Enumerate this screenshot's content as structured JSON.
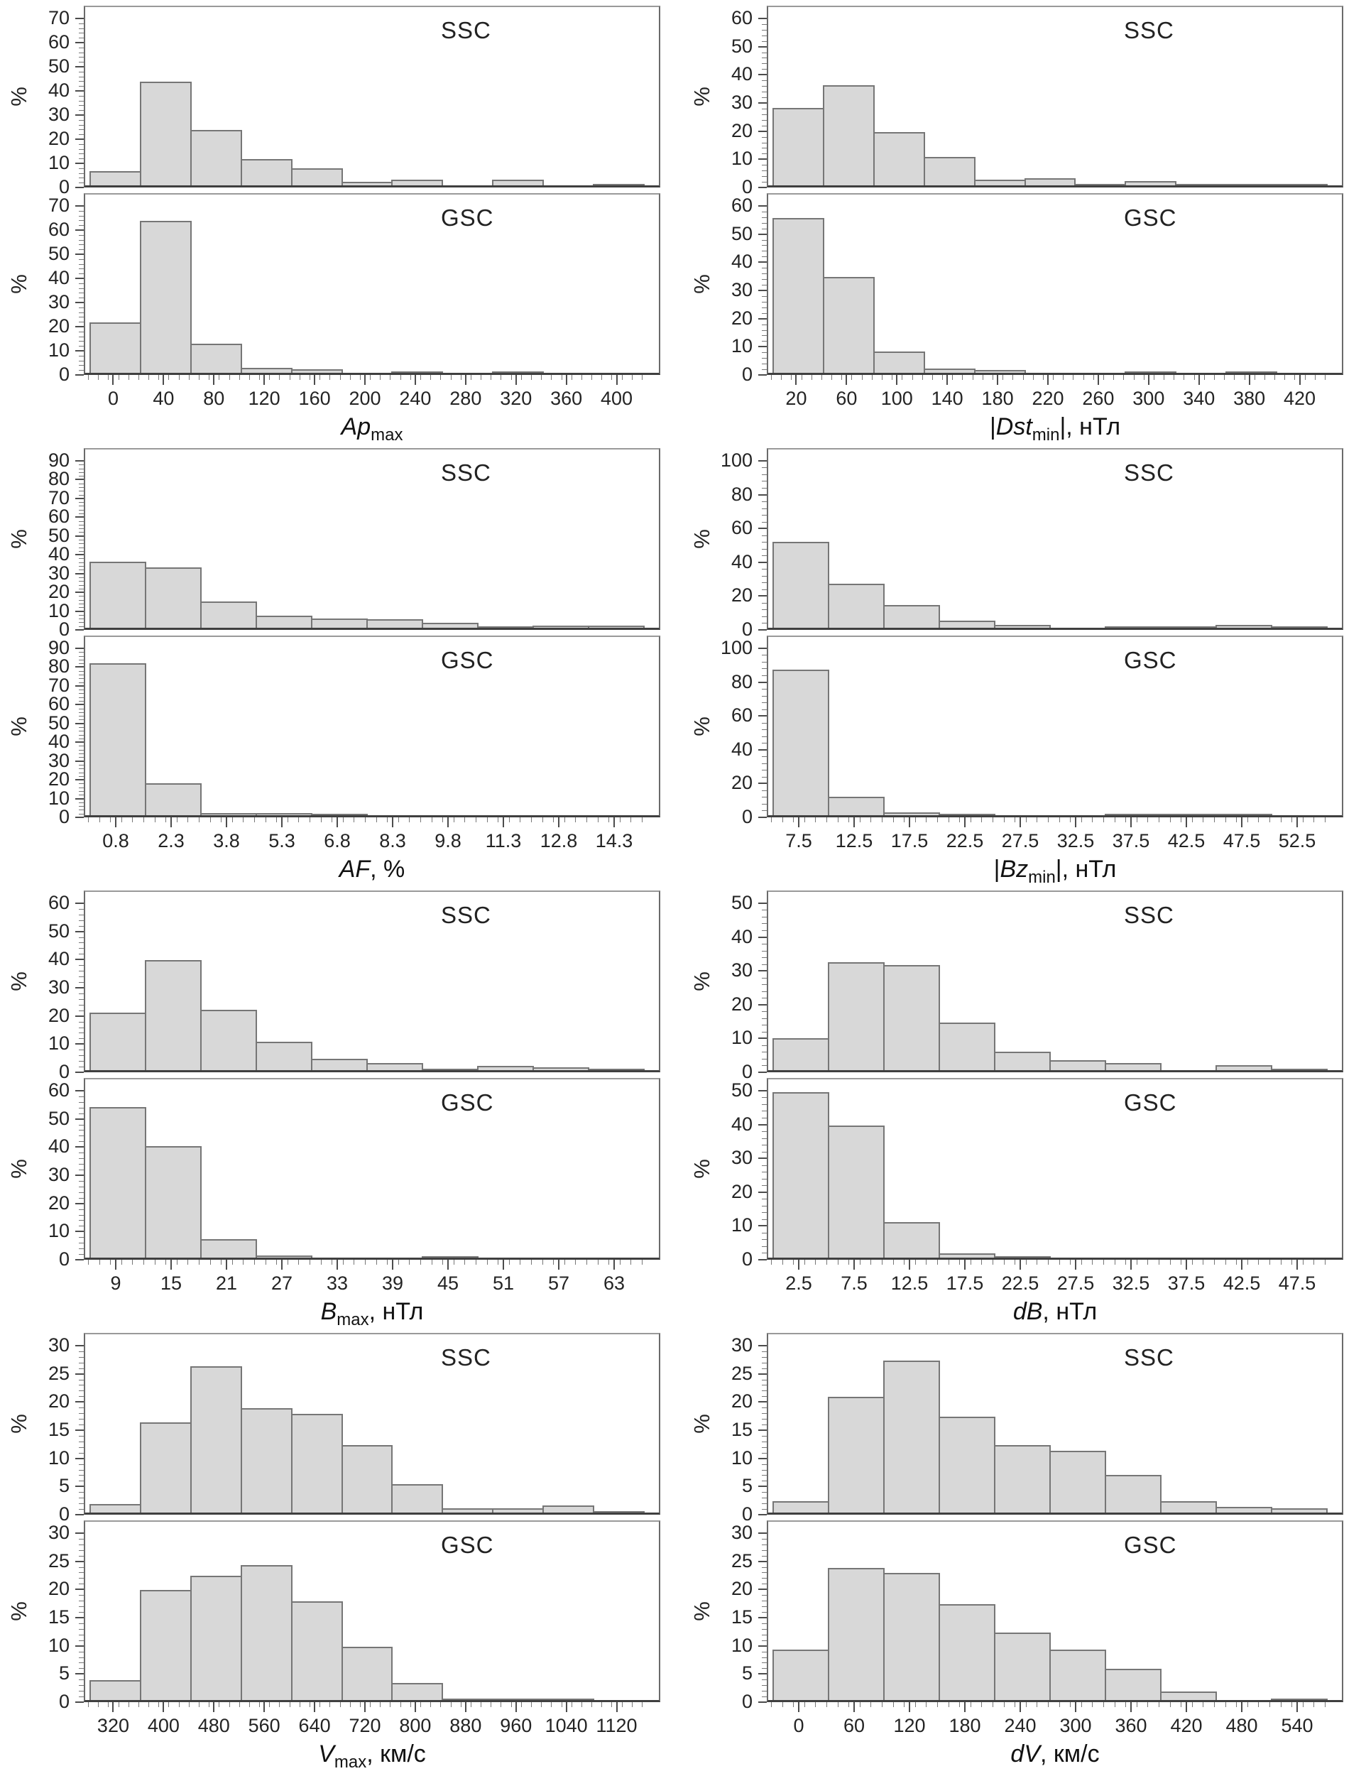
{
  "y_axis_unit": "%",
  "colors": {
    "bar_fill": "#d8d8d8",
    "bar_border": "#767676",
    "panel_border": "#6a6a6a",
    "text": "#1c1c1c"
  },
  "chart_data": [
    {
      "id": "ap-max",
      "type": "bar",
      "title": {
        "pre": "",
        "main": "Ap",
        "sub": "max",
        "post": ""
      },
      "x_ticks": [
        0,
        40,
        80,
        120,
        160,
        200,
        240,
        280,
        320,
        360,
        400
      ],
      "y_ticks": [
        0,
        10,
        20,
        30,
        40,
        50,
        60,
        70
      ],
      "ylim": [
        0,
        70
      ],
      "y_step": 10,
      "grid": false,
      "series": [
        {
          "name": "SSC",
          "values": [
            6,
            43,
            23,
            11,
            7,
            1.5,
            2.5,
            0,
            2.5,
            0,
            0.5
          ]
        },
        {
          "name": "GSC",
          "values": [
            21,
            63,
            12,
            2,
            1.5,
            0,
            0.5,
            0,
            0.5,
            0,
            0
          ]
        }
      ]
    },
    {
      "id": "dst-min",
      "type": "bar",
      "title": {
        "pre": "|",
        "main": "Dst",
        "sub": "min",
        "post": "|, нТл"
      },
      "x_ticks": [
        20,
        60,
        100,
        140,
        180,
        220,
        260,
        300,
        340,
        380,
        420
      ],
      "y_ticks": [
        0,
        10,
        20,
        30,
        40,
        50,
        60
      ],
      "ylim": [
        0,
        60
      ],
      "y_step": 10,
      "grid": false,
      "series": [
        {
          "name": "SSC",
          "values": [
            27.5,
            35.5,
            19,
            10,
            2,
            2.5,
            0.5,
            1.5,
            0.5,
            0.5,
            0.5
          ]
        },
        {
          "name": "GSC",
          "values": [
            55,
            34,
            7.5,
            1.5,
            1,
            0,
            0,
            0.5,
            0,
            0.5,
            0
          ]
        }
      ]
    },
    {
      "id": "af",
      "type": "bar",
      "title": {
        "pre": "",
        "main": "AF",
        "sub": "",
        "post": ", %"
      },
      "x_ticks": [
        0.8,
        2.3,
        3.8,
        5.3,
        6.8,
        8.3,
        9.8,
        11.3,
        12.8,
        14.3
      ],
      "y_ticks": [
        0,
        10,
        20,
        30,
        40,
        50,
        60,
        70,
        80,
        90
      ],
      "ylim": [
        0,
        90
      ],
      "y_step": 10,
      "grid": false,
      "series": [
        {
          "name": "SSC",
          "values": [
            35,
            32,
            14,
            6.5,
            5,
            4.5,
            2.5,
            0.5,
            1.2,
            1.2
          ]
        },
        {
          "name": "GSC",
          "values": [
            81,
            17,
            1,
            1,
            0.5,
            0,
            0,
            0,
            0,
            0
          ]
        }
      ]
    },
    {
      "id": "bz-min",
      "type": "bar",
      "title": {
        "pre": "|",
        "main": "Bz",
        "sub": "min",
        "post": "|, нТл"
      },
      "x_ticks": [
        7.5,
        12.5,
        17.5,
        22.5,
        27.5,
        32.5,
        37.5,
        42.5,
        47.5,
        52.5
      ],
      "y_ticks": [
        0,
        20,
        40,
        60,
        80,
        100
      ],
      "ylim": [
        0,
        100
      ],
      "y_step": 20,
      "grid": false,
      "series": [
        {
          "name": "SSC",
          "values": [
            51,
            26,
            13.5,
            4,
            1.5,
            0,
            0.7,
            0.7,
            1.7,
            0.5
          ]
        },
        {
          "name": "GSC",
          "values": [
            86,
            11,
            1.5,
            1,
            0,
            0,
            1,
            1,
            0.3,
            0
          ]
        }
      ]
    },
    {
      "id": "b-max",
      "type": "bar",
      "title": {
        "pre": "",
        "main": "B",
        "sub": "max",
        "post": ", нТл"
      },
      "x_ticks": [
        9,
        15,
        21,
        27,
        33,
        39,
        45,
        51,
        57,
        63
      ],
      "y_ticks": [
        0,
        10,
        20,
        30,
        40,
        50,
        60
      ],
      "ylim": [
        0,
        60
      ],
      "y_step": 10,
      "grid": false,
      "series": [
        {
          "name": "SSC",
          "values": [
            20.5,
            39,
            21.5,
            10,
            4,
            2.5,
            0.5,
            1.5,
            1,
            0.5
          ]
        },
        {
          "name": "GSC",
          "values": [
            53.5,
            39.5,
            6.5,
            0.7,
            0,
            0,
            0.3,
            0,
            0,
            0
          ]
        }
      ]
    },
    {
      "id": "db",
      "type": "bar",
      "title": {
        "pre": "",
        "main": "dB",
        "sub": "",
        "post": ", нТл"
      },
      "x_ticks": [
        2.5,
        7.5,
        12.5,
        17.5,
        22.5,
        27.5,
        32.5,
        37.5,
        42.5,
        47.5
      ],
      "y_ticks": [
        0,
        10,
        20,
        30,
        40,
        50
      ],
      "ylim": [
        0,
        50
      ],
      "y_step": 10,
      "grid": false,
      "series": [
        {
          "name": "SSC",
          "values": [
            9.5,
            32,
            31,
            14,
            5.5,
            3,
            2,
            0,
            1.5,
            0.5
          ]
        },
        {
          "name": "GSC",
          "values": [
            49,
            39,
            10.5,
            1.2,
            0.3,
            0,
            0,
            0,
            0,
            0
          ]
        }
      ]
    },
    {
      "id": "v-max",
      "type": "bar",
      "title": {
        "pre": "",
        "main": "V",
        "sub": "max",
        "post": ", км/с"
      },
      "x_ticks": [
        320,
        400,
        480,
        560,
        640,
        720,
        800,
        880,
        960,
        1040,
        1120
      ],
      "y_ticks": [
        0,
        5,
        10,
        15,
        20,
        25,
        30
      ],
      "ylim": [
        0,
        30
      ],
      "y_step": 5,
      "grid": false,
      "series": [
        {
          "name": "SSC",
          "values": [
            1.5,
            16,
            26,
            18.5,
            17.5,
            12,
            5,
            0.7,
            0.7,
            1.3,
            0.3
          ]
        },
        {
          "name": "GSC",
          "values": [
            3.5,
            19.5,
            22,
            24,
            17.5,
            9.5,
            3,
            0.3,
            0.3,
            0.2,
            0
          ]
        }
      ]
    },
    {
      "id": "dv",
      "type": "bar",
      "title": {
        "pre": "",
        "main": "dV",
        "sub": "",
        "post": ", км/с"
      },
      "x_ticks": [
        0,
        60,
        120,
        180,
        240,
        300,
        360,
        420,
        480,
        540
      ],
      "y_ticks": [
        0,
        5,
        10,
        15,
        20,
        25,
        30
      ],
      "ylim": [
        0,
        30
      ],
      "y_step": 5,
      "grid": false,
      "series": [
        {
          "name": "SSC",
          "values": [
            2,
            20.5,
            27,
            17,
            12,
            11,
            6.7,
            2,
            1,
            0.7
          ]
        },
        {
          "name": "GSC",
          "values": [
            9,
            23.5,
            22.5,
            17,
            12,
            9,
            5.5,
            1.5,
            0,
            0.2
          ]
        }
      ]
    }
  ]
}
